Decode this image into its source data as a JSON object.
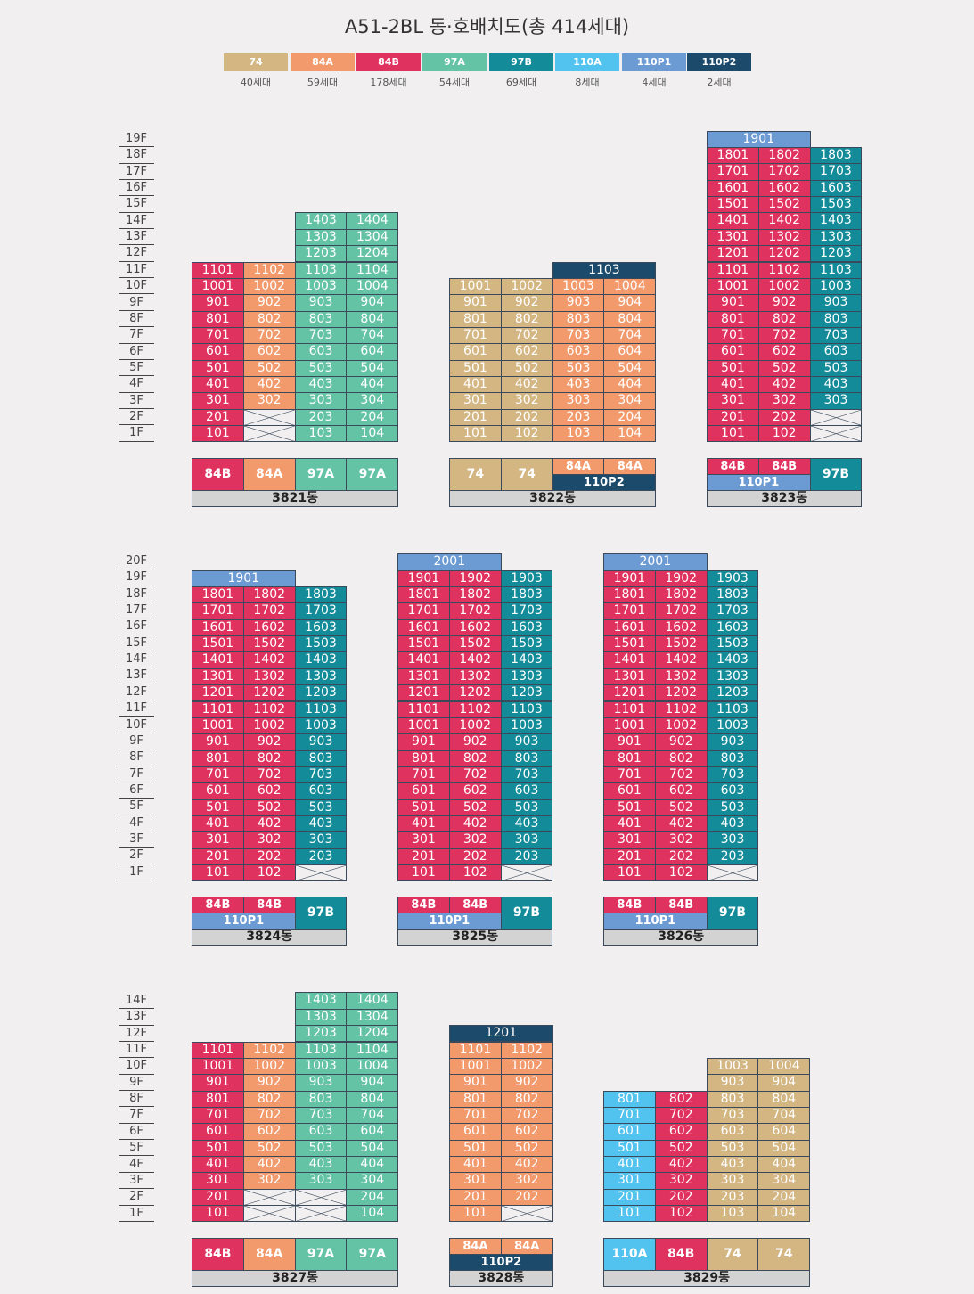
{
  "title": "A51-2BL 동·호배치도(총 414세대)",
  "legend": [
    {
      "type": "74",
      "count": "40세대",
      "color": "#d4b683"
    },
    {
      "type": "84A",
      "count": "59세대",
      "color": "#f29a6c"
    },
    {
      "type": "84B",
      "count": "178세대",
      "color": "#e0325f"
    },
    {
      "type": "97A",
      "count": "54세대",
      "color": "#64c3a5"
    },
    {
      "type": "97B",
      "count": "69세대",
      "color": "#138b99"
    },
    {
      "type": "110A",
      "count": "8세대",
      "color": "#52c2ef"
    },
    {
      "type": "110P1",
      "count": "4세대",
      "color": "#6c9bd4"
    },
    {
      "type": "110P2",
      "count": "2세대",
      "color": "#1c4a6b"
    }
  ],
  "floor_labels": {
    "r1": [
      "19F",
      "18F",
      "17F",
      "16F",
      "15F",
      "14F",
      "13F",
      "12F",
      "11F",
      "10F",
      "9F",
      "8F",
      "7F",
      "6F",
      "5F",
      "4F",
      "3F",
      "2F",
      "1F"
    ],
    "r2": [
      "20F",
      "19F",
      "18F",
      "17F",
      "16F",
      "15F",
      "14F",
      "13F",
      "12F",
      "11F",
      "10F",
      "9F",
      "8F",
      "7F",
      "6F",
      "5F",
      "4F",
      "3F",
      "2F",
      "1F"
    ],
    "r3": [
      "14F",
      "13F",
      "12F",
      "11F",
      "10F",
      "9F",
      "8F",
      "7F",
      "6F",
      "5F",
      "4F",
      "3F",
      "2F",
      "1F"
    ]
  },
  "buildings": [
    {
      "name": "3821동",
      "row": "r1",
      "cols": [
        {
          "type": "84B",
          "top": 11,
          "exclude": []
        },
        {
          "type": "84A",
          "top": 11,
          "exclude": [
            1,
            2
          ]
        },
        {
          "type": "97A",
          "top": 14,
          "exclude": []
        },
        {
          "type": "97A",
          "top": 14,
          "exclude": []
        }
      ],
      "extras": [],
      "footer": [
        [
          "84B"
        ],
        [
          "84A"
        ],
        [
          "97A"
        ],
        [
          "97A"
        ]
      ]
    },
    {
      "name": "3822동",
      "row": "r1",
      "cols": [
        {
          "type": "74",
          "top": 10,
          "exclude": []
        },
        {
          "type": "74",
          "top": 10,
          "exclude": []
        },
        {
          "type": "84A",
          "top": 10,
          "exclude": []
        },
        {
          "type": "84A",
          "top": 10,
          "exclude": []
        }
      ],
      "extras": [
        {
          "floor": 11,
          "num": "1103",
          "type": "110P2",
          "start": 2,
          "span": 2
        }
      ],
      "footer": [
        [
          "74"
        ],
        [
          "74"
        ],
        [
          "84A",
          "84A",
          "110P2"
        ]
      ]
    },
    {
      "name": "3823동",
      "row": "r1",
      "cols": [
        {
          "type": "84B",
          "top": 18,
          "exclude": []
        },
        {
          "type": "84B",
          "top": 18,
          "exclude": []
        },
        {
          "type": "97B",
          "top": 18,
          "exclude": [
            1,
            2
          ]
        }
      ],
      "extras": [
        {
          "floor": 19,
          "num": "1901",
          "type": "110P1",
          "start": 0,
          "span": 2
        }
      ],
      "footer": [
        [
          "84B",
          "84B",
          "110P1"
        ],
        [
          "97B"
        ]
      ]
    },
    {
      "name": "3824동",
      "row": "r2",
      "cols": [
        {
          "type": "84B",
          "top": 18,
          "exclude": []
        },
        {
          "type": "84B",
          "top": 18,
          "exclude": []
        },
        {
          "type": "97B",
          "top": 18,
          "exclude": [
            1
          ]
        }
      ],
      "extras": [
        {
          "floor": 19,
          "num": "1901",
          "type": "110P1",
          "start": 0,
          "span": 2
        }
      ],
      "footer": [
        [
          "84B",
          "84B",
          "110P1"
        ],
        [
          "97B"
        ]
      ]
    },
    {
      "name": "3825동",
      "row": "r2",
      "cols": [
        {
          "type": "84B",
          "top": 19,
          "exclude": []
        },
        {
          "type": "84B",
          "top": 19,
          "exclude": []
        },
        {
          "type": "97B",
          "top": 19,
          "exclude": [
            1
          ]
        }
      ],
      "extras": [
        {
          "floor": 20,
          "num": "2001",
          "type": "110P1",
          "start": 0,
          "span": 2
        }
      ],
      "footer": [
        [
          "84B",
          "84B",
          "110P1"
        ],
        [
          "97B"
        ]
      ]
    },
    {
      "name": "3826동",
      "row": "r2",
      "cols": [
        {
          "type": "84B",
          "top": 19,
          "exclude": []
        },
        {
          "type": "84B",
          "top": 19,
          "exclude": []
        },
        {
          "type": "97B",
          "top": 19,
          "exclude": [
            1
          ]
        }
      ],
      "extras": [
        {
          "floor": 20,
          "num": "2001",
          "type": "110P1",
          "start": 0,
          "span": 2
        }
      ],
      "footer": [
        [
          "84B",
          "84B",
          "110P1"
        ],
        [
          "97B"
        ]
      ]
    },
    {
      "name": "3827동",
      "row": "r3",
      "cols": [
        {
          "type": "84B",
          "top": 11,
          "exclude": []
        },
        {
          "type": "84A",
          "top": 11,
          "exclude": [
            1,
            2
          ]
        },
        {
          "type": "97A",
          "top": 14,
          "exclude": [
            1,
            2
          ]
        },
        {
          "type": "97A",
          "top": 14,
          "exclude": []
        }
      ],
      "extras": [],
      "footer": [
        [
          "84B"
        ],
        [
          "84A"
        ],
        [
          "97A"
        ],
        [
          "97A"
        ]
      ]
    },
    {
      "name": "3828동",
      "row": "r3",
      "cols": [
        {
          "type": "84A",
          "top": 11,
          "exclude": []
        },
        {
          "type": "84A",
          "top": 11,
          "exclude": [
            1
          ]
        }
      ],
      "extras": [
        {
          "floor": 12,
          "num": "1201",
          "type": "110P2",
          "start": 0,
          "span": 2
        }
      ],
      "footer": [
        [
          "84A",
          "84A",
          "110P2"
        ]
      ]
    },
    {
      "name": "3829동",
      "row": "r3",
      "cols": [
        {
          "type": "110A",
          "top": 8,
          "exclude": []
        },
        {
          "type": "84B",
          "top": 8,
          "exclude": []
        },
        {
          "type": "74",
          "top": 10,
          "exclude": []
        },
        {
          "type": "74",
          "top": 10,
          "exclude": []
        }
      ],
      "extras": [],
      "footer": [
        [
          "110A"
        ],
        [
          "84B"
        ],
        [
          "74"
        ],
        [
          "74"
        ]
      ]
    }
  ]
}
